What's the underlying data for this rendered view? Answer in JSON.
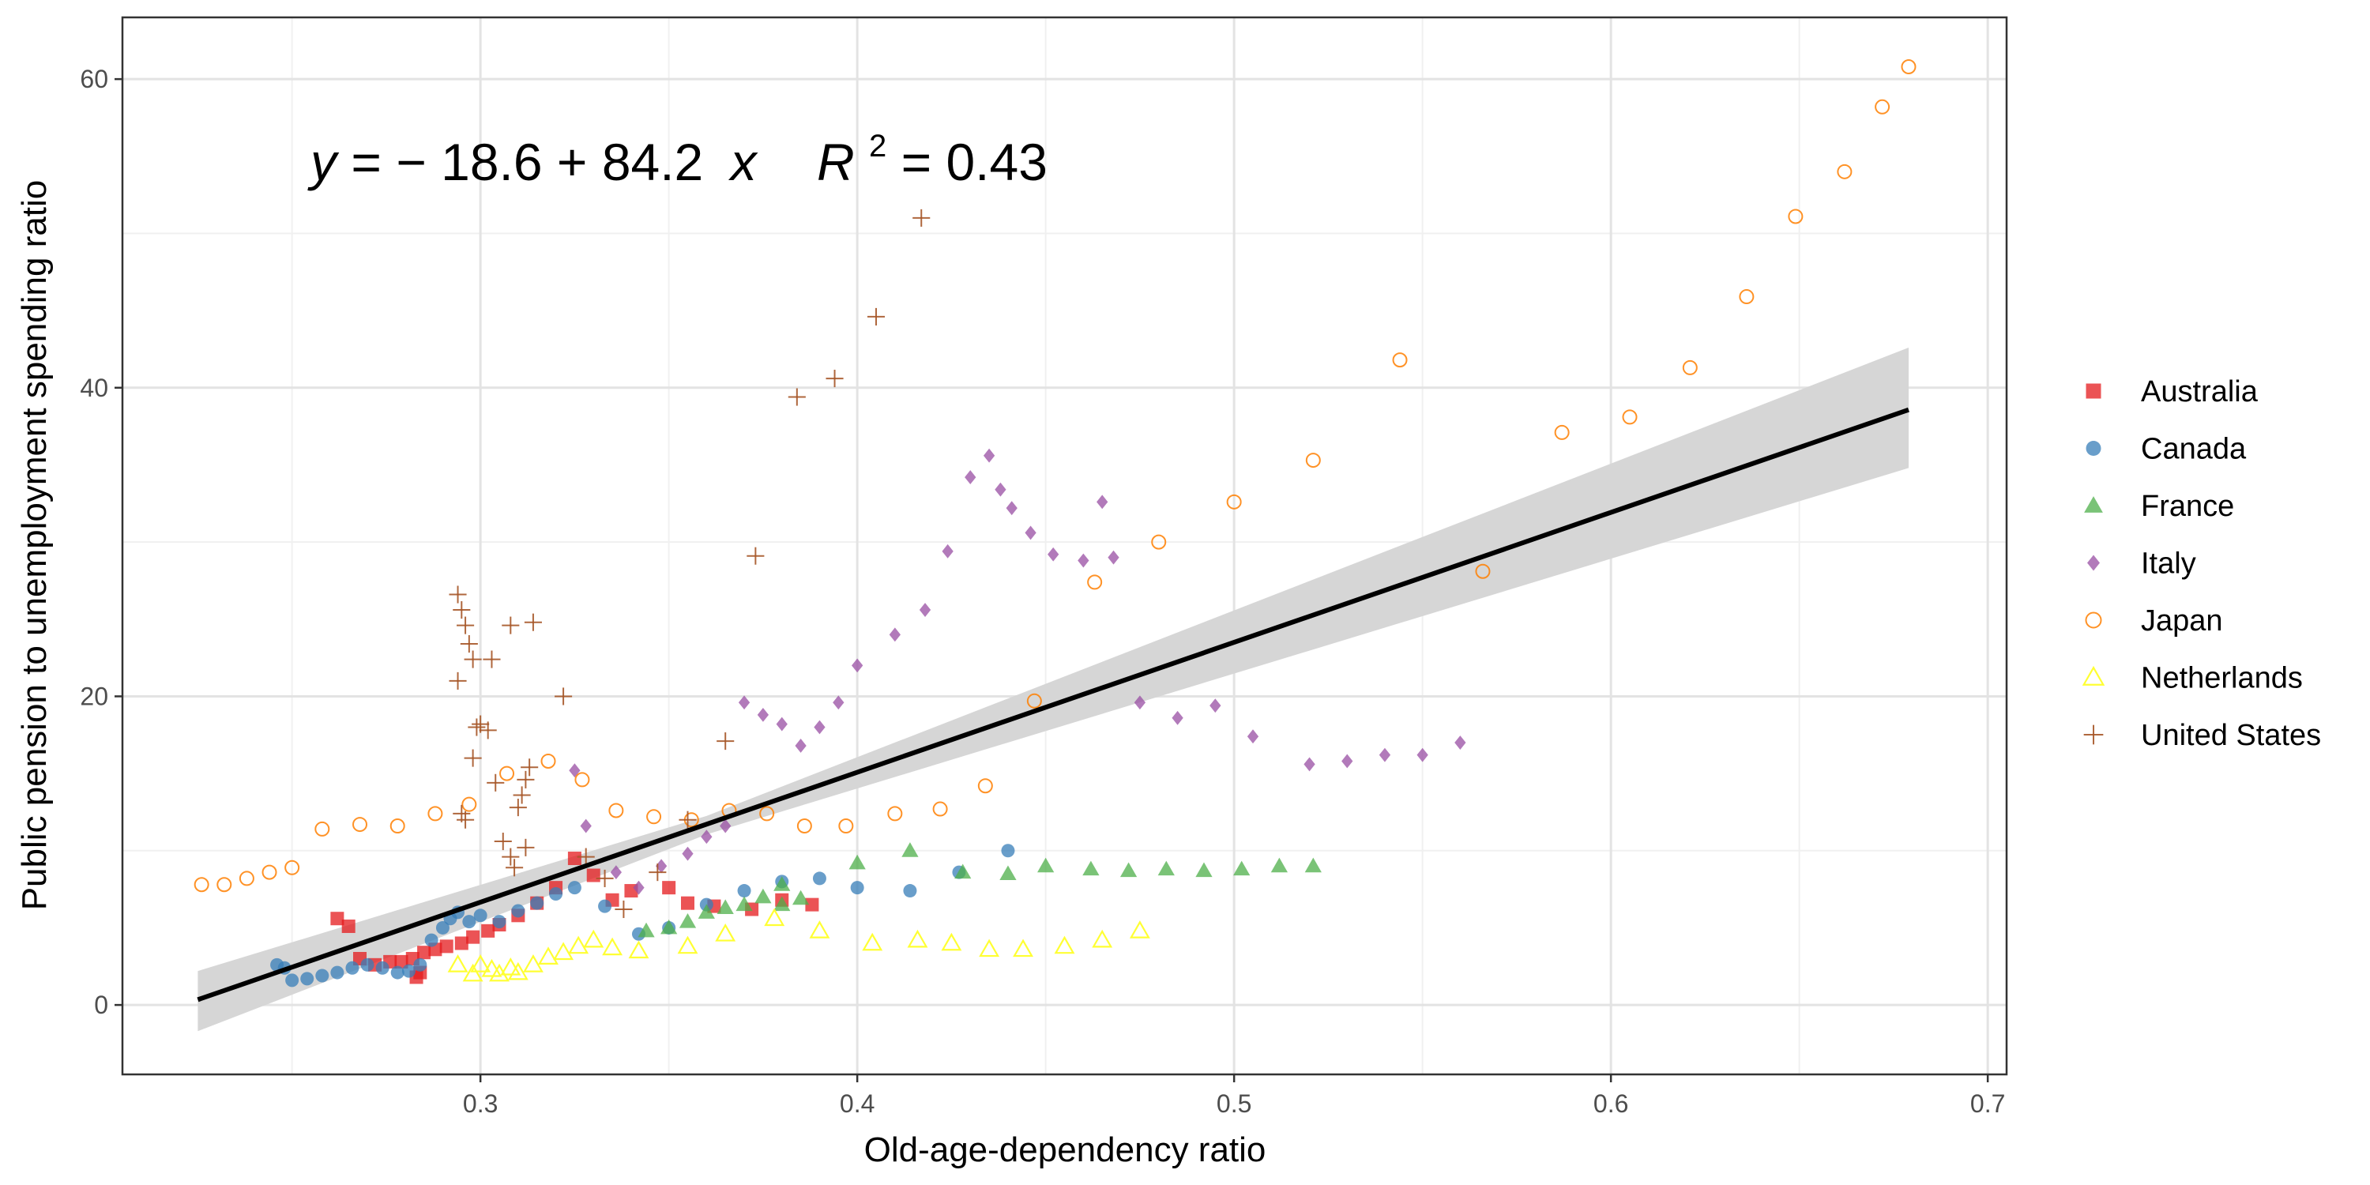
{
  "chart_data": {
    "type": "scatter",
    "xlabel": "Old-age-dependency ratio",
    "ylabel": "Public pension to unemployment spending ratio",
    "xlim": [
      0.205,
      0.705
    ],
    "ylim": [
      -4.5,
      64
    ],
    "x_ticks": [
      0.3,
      0.4,
      0.5,
      0.6,
      0.7
    ],
    "x_tick_labels": [
      "0.3",
      "0.4",
      "0.5",
      "0.6",
      "0.7"
    ],
    "y_ticks": [
      0,
      20,
      40,
      60
    ],
    "y_tick_labels": [
      "0",
      "20",
      "40",
      "60"
    ],
    "grid": true,
    "legend_position": "right",
    "annotation": {
      "equation": {
        "y": "y",
        "equals": " = ",
        "intercept": "− 18.6",
        "plus": " + ",
        "slope": "84.2",
        "x": "x",
        "r": "R",
        "r_exp": "2",
        "r_equals": " = ",
        "r_value": "0.43"
      }
    },
    "regression": {
      "intercept": -18.6,
      "slope": 84.2,
      "r2": 0.43,
      "x_range": [
        0.225,
        0.679
      ],
      "ci": {
        "x": [
          0.225,
          0.679
        ],
        "lower_at_ends": [
          -1.7,
          34.8
        ],
        "upper_at_ends": [
          2.2,
          42.6
        ],
        "lower_at_mean": 11.05,
        "upper_at_mean": 12.25,
        "x_mean": 0.36
      },
      "line_color": "#000000",
      "band_color": "#d6d6d6"
    },
    "series": [
      {
        "name": "Australia",
        "marker": "square",
        "color": "#e41a1c",
        "points": [
          [
            0.262,
            5.6
          ],
          [
            0.265,
            5.1
          ],
          [
            0.268,
            3.0
          ],
          [
            0.272,
            2.6
          ],
          [
            0.276,
            2.8
          ],
          [
            0.279,
            2.8
          ],
          [
            0.282,
            3.0
          ],
          [
            0.284,
            2.1
          ],
          [
            0.283,
            1.8
          ],
          [
            0.285,
            3.4
          ],
          [
            0.288,
            3.6
          ],
          [
            0.291,
            3.8
          ],
          [
            0.295,
            4.0
          ],
          [
            0.298,
            4.4
          ],
          [
            0.302,
            4.8
          ],
          [
            0.305,
            5.2
          ],
          [
            0.31,
            5.8
          ],
          [
            0.315,
            6.6
          ],
          [
            0.32,
            7.6
          ],
          [
            0.325,
            9.5
          ],
          [
            0.33,
            8.4
          ],
          [
            0.335,
            6.8
          ],
          [
            0.34,
            7.4
          ],
          [
            0.35,
            7.6
          ],
          [
            0.355,
            6.6
          ],
          [
            0.362,
            6.4
          ],
          [
            0.372,
            6.2
          ],
          [
            0.38,
            6.8
          ],
          [
            0.388,
            6.5
          ]
        ]
      },
      {
        "name": "Canada",
        "marker": "circle",
        "color": "#377eb8",
        "points": [
          [
            0.246,
            2.6
          ],
          [
            0.248,
            2.4
          ],
          [
            0.25,
            1.6
          ],
          [
            0.254,
            1.7
          ],
          [
            0.258,
            1.9
          ],
          [
            0.262,
            2.1
          ],
          [
            0.266,
            2.4
          ],
          [
            0.27,
            2.6
          ],
          [
            0.274,
            2.4
          ],
          [
            0.278,
            2.1
          ],
          [
            0.281,
            2.2
          ],
          [
            0.284,
            2.6
          ],
          [
            0.287,
            4.2
          ],
          [
            0.29,
            5.0
          ],
          [
            0.292,
            5.6
          ],
          [
            0.294,
            6.0
          ],
          [
            0.297,
            5.4
          ],
          [
            0.3,
            5.8
          ],
          [
            0.305,
            5.4
          ],
          [
            0.31,
            6.1
          ],
          [
            0.315,
            6.6
          ],
          [
            0.32,
            7.2
          ],
          [
            0.325,
            7.6
          ],
          [
            0.333,
            6.4
          ],
          [
            0.342,
            4.6
          ],
          [
            0.35,
            5.0
          ],
          [
            0.36,
            6.5
          ],
          [
            0.37,
            7.4
          ],
          [
            0.38,
            8.0
          ],
          [
            0.39,
            8.2
          ],
          [
            0.4,
            7.6
          ],
          [
            0.414,
            7.4
          ],
          [
            0.427,
            8.6
          ],
          [
            0.44,
            10.0
          ]
        ]
      },
      {
        "name": "France",
        "marker": "triangle",
        "color": "#4daf4a",
        "points": [
          [
            0.344,
            4.8
          ],
          [
            0.35,
            5.0
          ],
          [
            0.355,
            5.4
          ],
          [
            0.36,
            6.0
          ],
          [
            0.365,
            6.3
          ],
          [
            0.37,
            6.5
          ],
          [
            0.375,
            7.0
          ],
          [
            0.38,
            7.8
          ],
          [
            0.38,
            6.5
          ],
          [
            0.385,
            6.9
          ],
          [
            0.4,
            9.2
          ],
          [
            0.414,
            10.0
          ],
          [
            0.428,
            8.6
          ],
          [
            0.44,
            8.5
          ],
          [
            0.45,
            9.0
          ],
          [
            0.462,
            8.8
          ],
          [
            0.472,
            8.7
          ],
          [
            0.482,
            8.8
          ],
          [
            0.492,
            8.7
          ],
          [
            0.502,
            8.8
          ],
          [
            0.512,
            9.0
          ],
          [
            0.521,
            9.0
          ]
        ]
      },
      {
        "name": "Italy",
        "marker": "diamond",
        "color": "#984ea3",
        "points": [
          [
            0.325,
            15.2
          ],
          [
            0.328,
            11.6
          ],
          [
            0.336,
            8.6
          ],
          [
            0.342,
            7.6
          ],
          [
            0.348,
            9.0
          ],
          [
            0.355,
            9.8
          ],
          [
            0.36,
            10.9
          ],
          [
            0.365,
            11.6
          ],
          [
            0.37,
            19.6
          ],
          [
            0.375,
            18.8
          ],
          [
            0.38,
            18.2
          ],
          [
            0.385,
            16.8
          ],
          [
            0.39,
            18.0
          ],
          [
            0.395,
            19.6
          ],
          [
            0.4,
            22.0
          ],
          [
            0.41,
            24.0
          ],
          [
            0.418,
            25.6
          ],
          [
            0.424,
            29.4
          ],
          [
            0.43,
            34.2
          ],
          [
            0.435,
            35.6
          ],
          [
            0.438,
            33.4
          ],
          [
            0.441,
            32.2
          ],
          [
            0.446,
            30.6
          ],
          [
            0.452,
            29.2
          ],
          [
            0.46,
            28.8
          ],
          [
            0.465,
            32.6
          ],
          [
            0.468,
            29.0
          ],
          [
            0.475,
            19.6
          ],
          [
            0.485,
            18.6
          ],
          [
            0.495,
            19.4
          ],
          [
            0.505,
            17.4
          ],
          [
            0.52,
            15.6
          ],
          [
            0.53,
            15.8
          ],
          [
            0.54,
            16.2
          ],
          [
            0.55,
            16.2
          ],
          [
            0.56,
            17.0
          ]
        ]
      },
      {
        "name": "Japan",
        "marker": "open-circle",
        "color": "#ff7f00",
        "points": [
          [
            0.226,
            7.8
          ],
          [
            0.232,
            7.8
          ],
          [
            0.238,
            8.2
          ],
          [
            0.244,
            8.6
          ],
          [
            0.25,
            8.9
          ],
          [
            0.258,
            11.4
          ],
          [
            0.268,
            11.7
          ],
          [
            0.278,
            11.6
          ],
          [
            0.288,
            12.4
          ],
          [
            0.297,
            13.0
          ],
          [
            0.307,
            15.0
          ],
          [
            0.318,
            15.8
          ],
          [
            0.327,
            14.6
          ],
          [
            0.336,
            12.6
          ],
          [
            0.346,
            12.2
          ],
          [
            0.356,
            12.0
          ],
          [
            0.366,
            12.6
          ],
          [
            0.376,
            12.4
          ],
          [
            0.386,
            11.6
          ],
          [
            0.397,
            11.6
          ],
          [
            0.41,
            12.4
          ],
          [
            0.422,
            12.7
          ],
          [
            0.434,
            14.2
          ],
          [
            0.447,
            19.7
          ],
          [
            0.463,
            27.4
          ],
          [
            0.48,
            30.0
          ],
          [
            0.5,
            32.6
          ],
          [
            0.521,
            35.3
          ],
          [
            0.544,
            41.8
          ],
          [
            0.566,
            28.1
          ],
          [
            0.587,
            37.1
          ],
          [
            0.605,
            38.1
          ],
          [
            0.621,
            41.3
          ],
          [
            0.636,
            45.9
          ],
          [
            0.649,
            51.1
          ],
          [
            0.662,
            54.0
          ],
          [
            0.672,
            58.2
          ],
          [
            0.679,
            60.8
          ]
        ]
      },
      {
        "name": "Netherlands",
        "marker": "open-triangle",
        "color": "#ffff33",
        "points": [
          [
            0.294,
            2.6
          ],
          [
            0.298,
            2.0
          ],
          [
            0.3,
            2.6
          ],
          [
            0.303,
            2.3
          ],
          [
            0.305,
            2.0
          ],
          [
            0.308,
            2.4
          ],
          [
            0.31,
            2.1
          ],
          [
            0.314,
            2.6
          ],
          [
            0.318,
            3.1
          ],
          [
            0.322,
            3.4
          ],
          [
            0.326,
            3.8
          ],
          [
            0.33,
            4.2
          ],
          [
            0.335,
            3.7
          ],
          [
            0.342,
            3.5
          ],
          [
            0.355,
            3.8
          ],
          [
            0.365,
            4.6
          ],
          [
            0.378,
            5.6
          ],
          [
            0.39,
            4.8
          ],
          [
            0.404,
            4.0
          ],
          [
            0.416,
            4.2
          ],
          [
            0.425,
            4.0
          ],
          [
            0.435,
            3.6
          ],
          [
            0.444,
            3.6
          ],
          [
            0.455,
            3.8
          ],
          [
            0.465,
            4.2
          ],
          [
            0.475,
            4.8
          ]
        ]
      },
      {
        "name": "United States",
        "marker": "plus",
        "color": "#a65628",
        "points": [
          [
            0.294,
            26.6
          ],
          [
            0.295,
            25.6
          ],
          [
            0.296,
            24.6
          ],
          [
            0.297,
            23.4
          ],
          [
            0.298,
            22.4
          ],
          [
            0.294,
            21.0
          ],
          [
            0.295,
            12.4
          ],
          [
            0.296,
            12.0
          ],
          [
            0.298,
            16.0
          ],
          [
            0.299,
            18.0
          ],
          [
            0.3,
            18.2
          ],
          [
            0.302,
            17.8
          ],
          [
            0.303,
            22.4
          ],
          [
            0.304,
            14.4
          ],
          [
            0.306,
            10.6
          ],
          [
            0.308,
            24.6
          ],
          [
            0.308,
            9.6
          ],
          [
            0.309,
            8.9
          ],
          [
            0.31,
            12.8
          ],
          [
            0.311,
            13.6
          ],
          [
            0.312,
            14.6
          ],
          [
            0.313,
            15.4
          ],
          [
            0.312,
            10.2
          ],
          [
            0.314,
            24.8
          ],
          [
            0.322,
            20.0
          ],
          [
            0.328,
            9.6
          ],
          [
            0.333,
            8.2
          ],
          [
            0.338,
            6.2
          ],
          [
            0.347,
            8.6
          ],
          [
            0.355,
            12.0
          ],
          [
            0.365,
            17.1
          ],
          [
            0.373,
            29.1
          ],
          [
            0.384,
            39.4
          ],
          [
            0.394,
            40.6
          ],
          [
            0.405,
            44.6
          ],
          [
            0.417,
            51.0
          ]
        ]
      }
    ]
  }
}
